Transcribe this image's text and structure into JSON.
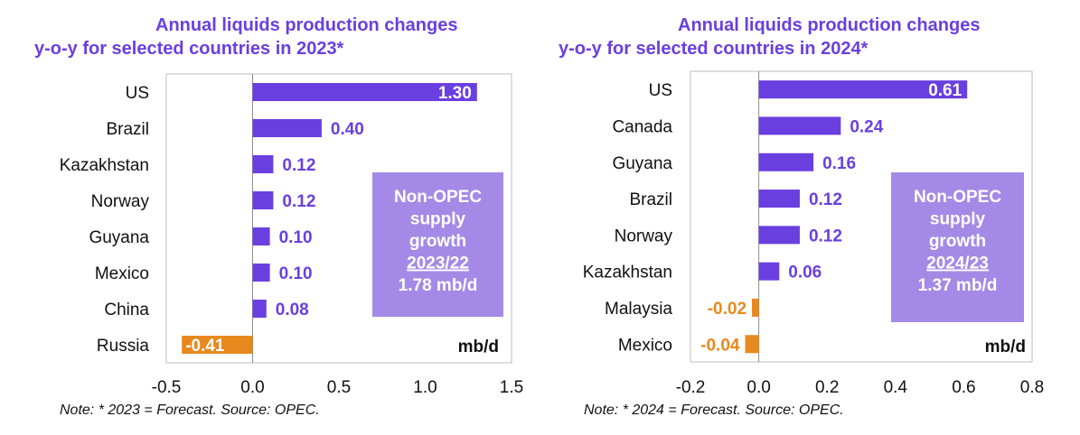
{
  "colors": {
    "positive": "#6a3fe0",
    "negative": "#e8891d",
    "box": "#a48ae6",
    "title": "#6a3fe0"
  },
  "chart_data": [
    {
      "type": "bar",
      "orientation": "horizontal",
      "title_line1": "Annual liquids production changes",
      "title_line2": "y-o-y for selected countries in 2023*",
      "categories": [
        "US",
        "Brazil",
        "Kazakhstan",
        "Norway",
        "Guyana",
        "Mexico",
        "China",
        "Russia"
      ],
      "values": [
        1.3,
        0.4,
        0.12,
        0.12,
        0.1,
        0.1,
        0.08,
        -0.41
      ],
      "value_labels": [
        "1.30",
        "0.40",
        "0.12",
        "0.12",
        "0.10",
        "0.10",
        "0.08",
        "-0.41"
      ],
      "xlim": [
        -0.5,
        1.5
      ],
      "xticks": [
        -0.5,
        0.0,
        0.5,
        1.0,
        1.5
      ],
      "xtick_labels": [
        "-0.5",
        "0.0",
        "0.5",
        "1.0",
        "1.5"
      ],
      "unit": "mb/d",
      "annotation": {
        "line1": "Non-OPEC",
        "line2": "supply",
        "line3": "growth",
        "period": "2023/22",
        "value": "1.78 mb/d"
      },
      "note": "Note: * 2023 = Forecast. Source: OPEC."
    },
    {
      "type": "bar",
      "orientation": "horizontal",
      "title_line1": "Annual liquids production changes",
      "title_line2": "y-o-y for selected countries in 2024*",
      "categories": [
        "US",
        "Canada",
        "Guyana",
        "Brazil",
        "Norway",
        "Kazakhstan",
        "Malaysia",
        "Mexico"
      ],
      "values": [
        0.61,
        0.24,
        0.16,
        0.12,
        0.12,
        0.06,
        -0.02,
        -0.04
      ],
      "value_labels": [
        "0.61",
        "0.24",
        "0.16",
        "0.12",
        "0.12",
        "0.06",
        "-0.02",
        "-0.04"
      ],
      "xlim": [
        -0.2,
        0.8
      ],
      "xticks": [
        -0.2,
        0.0,
        0.2,
        0.4,
        0.6,
        0.8
      ],
      "xtick_labels": [
        "-0.2",
        "0.0",
        "0.2",
        "0.4",
        "0.6",
        "0.8"
      ],
      "unit": "mb/d",
      "annotation": {
        "line1": "Non-OPEC",
        "line2": "supply",
        "line3": "growth",
        "period": "2024/23",
        "value": "1.37 mb/d"
      },
      "note": "Note: * 2024 = Forecast. Source: OPEC."
    }
  ]
}
